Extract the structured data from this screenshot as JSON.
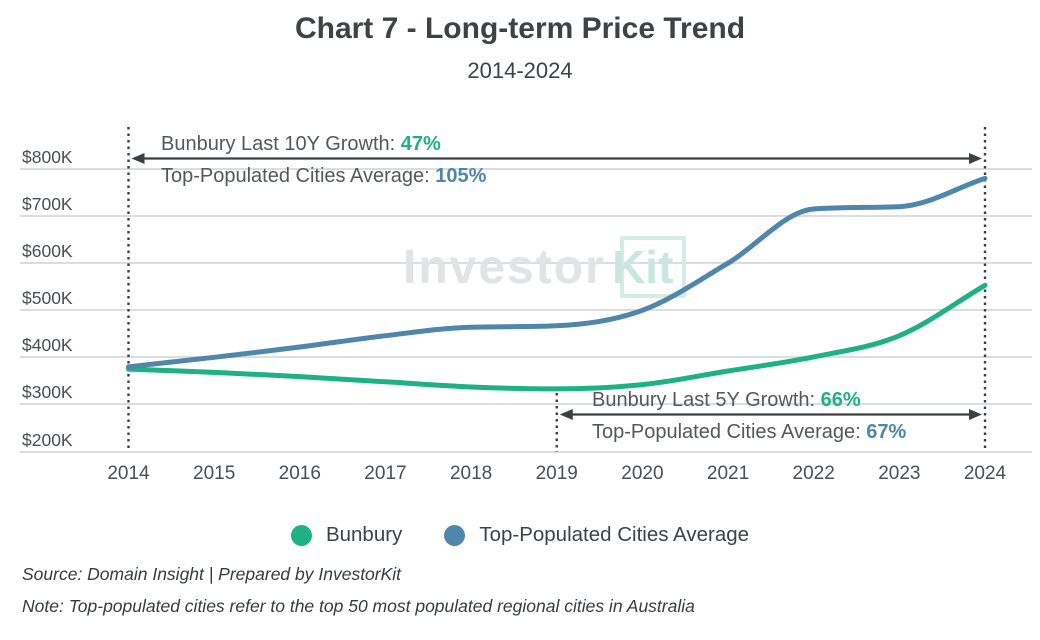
{
  "title": "Chart 7 - Long-term Price Trend",
  "subtitle": "2014-2024",
  "watermark": {
    "part1": "Investor",
    "part2": "Kit"
  },
  "colors": {
    "bunbury": "#1db183",
    "cities": "#4e87a9",
    "annotation_text": "#54575b",
    "gridline": "#dcdde0",
    "arrow": "#3c4043"
  },
  "annotations": {
    "ten_year": {
      "label1": "Bunbury Last 10Y Growth: ",
      "value1": "47%",
      "label2": "Top-Populated Cities Average: ",
      "value2": "105%"
    },
    "five_year": {
      "label1": "Bunbury Last 5Y Growth: ",
      "value1": "66%",
      "label2": "Top-Populated Cities Average: ",
      "value2": "67%"
    }
  },
  "legend": [
    {
      "name": "Bunbury",
      "color": "#1db183"
    },
    {
      "name": "Top-Populated Cities Average",
      "color": "#4e87a9"
    }
  ],
  "footer": {
    "source": "Source: Domain Insight | Prepared by InvestorKit",
    "note": "Note: Top-populated cities refer to the top 50 most populated regional cities in Australia"
  },
  "chart_data": {
    "type": "line",
    "title": "Chart 7 - Long-term Price Trend",
    "subtitle": "2014-2024",
    "x": [
      2014,
      2015,
      2016,
      2017,
      2018,
      2019,
      2020,
      2021,
      2022,
      2023,
      2024
    ],
    "series": [
      {
        "name": "Bunbury",
        "color": "#1db183",
        "values": [
          375,
          368,
          359,
          348,
          337,
          333,
          342,
          371,
          401,
          446,
          553
        ]
      },
      {
        "name": "Top-Populated Cities Average",
        "color": "#4e87a9",
        "values": [
          380,
          400,
          422,
          446,
          464,
          467,
          500,
          600,
          715,
          720,
          780
        ]
      }
    ],
    "units": "thousand AUD",
    "y_tick_values": [
      800,
      700,
      600,
      500,
      400,
      300,
      200
    ],
    "y_tick_labels": [
      "$800K",
      "$700K",
      "$600K",
      "$500K",
      "$400K",
      "$300K",
      "$200K"
    ],
    "ylim": [
      200,
      800
    ],
    "grid": true,
    "legend_position": "bottom",
    "annotation_spans": [
      {
        "from": 2014,
        "to": 2024,
        "bunbury_growth": "47%",
        "cities_growth": "105%"
      },
      {
        "from": 2019,
        "to": 2024,
        "bunbury_growth": "66%",
        "cities_growth": "67%"
      }
    ]
  }
}
